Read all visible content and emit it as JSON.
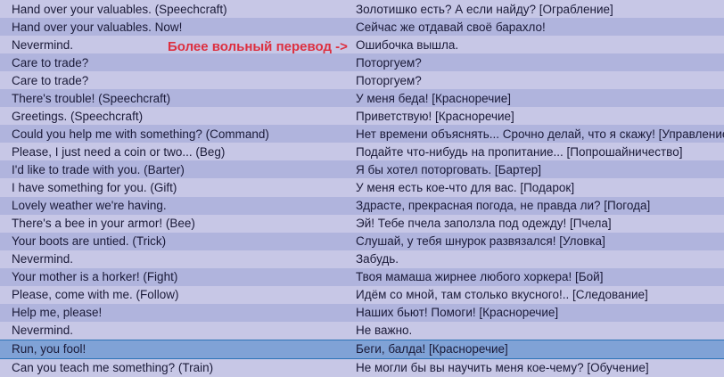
{
  "annotation": {
    "text": "Более вольный перевод ->",
    "color": "#dd3040",
    "points_to_row": 3
  },
  "colors": {
    "row_light": "#c7c7e6",
    "row_dark": "#b0b4dd",
    "row_selected_fill": "#80a2d6",
    "row_selected_border": "#2e74b8",
    "text": "#1a1a38"
  },
  "table": {
    "columns": [
      "english_phrase",
      "russian_translation"
    ],
    "rows": [
      {
        "en": "Hand over your valuables. (Speechcraft)",
        "ru": "Золотишко есть? А если найду? [Ограбление]",
        "selected": false
      },
      {
        "en": "Hand over your valuables. Now!",
        "ru": "Сейчас же отдавай своё барахло!",
        "selected": false
      },
      {
        "en": "Nevermind.",
        "ru": "Ошибочка вышла.",
        "selected": false
      },
      {
        "en": "Care to trade?",
        "ru": "Поторгуем?",
        "selected": false
      },
      {
        "en": "Care to trade?",
        "ru": "Поторгуем?",
        "selected": false
      },
      {
        "en": "There's trouble! (Speechcraft)",
        "ru": "У меня беда! [Красноречие]",
        "selected": false
      },
      {
        "en": "Greetings. (Speechcraft)",
        "ru": "Приветствую! [Красноречие]",
        "selected": false
      },
      {
        "en": "Could you help me with something? (Command)",
        "ru": "Нет времени объяснять... Срочно делай, что я скажу! [Управление]",
        "selected": false
      },
      {
        "en": "Please, I just need a coin or two... (Beg)",
        "ru": "Подайте что-нибудь на пропитание... [Попрошайничество]",
        "selected": false
      },
      {
        "en": "I'd like to trade with you. (Barter)",
        "ru": "Я бы хотел поторговать. [Бартер]",
        "selected": false
      },
      {
        "en": "I have something for you. (Gift)",
        "ru": "У меня есть кое-что для вас. [Подарок]",
        "selected": false
      },
      {
        "en": "Lovely weather we're having.",
        "ru": "Здрасте, прекрасная погода, не правда ли? [Погода]",
        "selected": false
      },
      {
        "en": "There's a bee in your armor! (Bee)",
        "ru": "Эй! Тебе пчела заползла под одежду! [Пчела]",
        "selected": false
      },
      {
        "en": "Your boots are untied. (Trick)",
        "ru": "Слушай, у тебя шнурок развязался! [Уловка]",
        "selected": false
      },
      {
        "en": "Nevermind.",
        "ru": "Забудь.",
        "selected": false
      },
      {
        "en": "Your mother is a horker! (Fight)",
        "ru": "Твоя мамаша жирнее любого хоркера! [Бой]",
        "selected": false
      },
      {
        "en": "Please, come with me. (Follow)",
        "ru": "Идём со мной, там столько вкусного!.. [Следование]",
        "selected": false
      },
      {
        "en": "Help me, please!",
        "ru": "Наших бьют! Помоги! [Красноречие]",
        "selected": false
      },
      {
        "en": "Nevermind.",
        "ru": "Не важно.",
        "selected": false
      },
      {
        "en": "Run, you fool!",
        "ru": "Беги, балда! [Красноречие]",
        "selected": true
      },
      {
        "en": "Can you teach me something? (Train)",
        "ru": "Не могли бы вы научить меня кое-чему? [Обучение]",
        "selected": false
      }
    ]
  }
}
